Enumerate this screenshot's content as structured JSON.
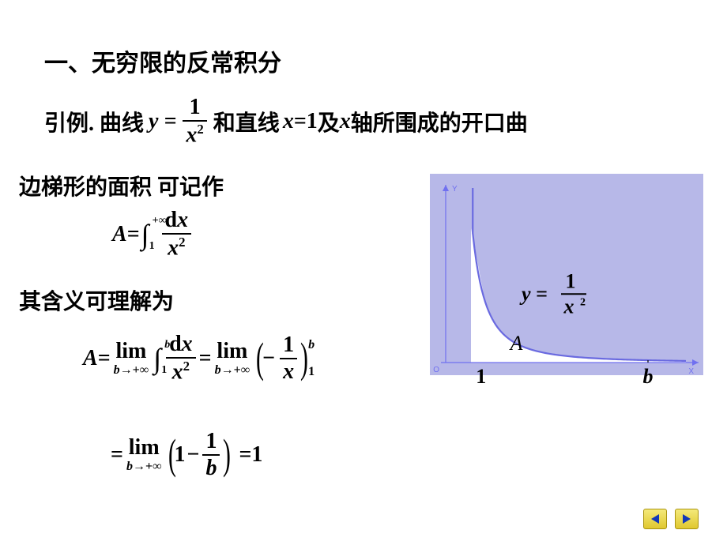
{
  "heading": "一、无穷限的反常积分",
  "lead_in": "引例. 曲线",
  "curve_lhs": "y =",
  "curve_frac_num": "1",
  "curve_frac_den": "x",
  "curve_frac_den_exp": "2",
  "and_line": "和直线",
  "line_eq_lhs": "x",
  "line_eq_eq": " = ",
  "line_eq_rhs": "1",
  "and_x_axis": " 及",
  "x_axis_var": "x",
  "x_axis_tail": " 轴所围成的开口曲",
  "line2": "边梯形的面积 可记作",
  "A_sym": "A",
  "eq": " = ",
  "int_sym": "∫",
  "int_lo": "1",
  "int_hi": "+∞",
  "dx_num_d": "d",
  "dx_num_x": "x",
  "dx_den": "x",
  "dx_den_exp": "2",
  "line3": "其含义可理解为",
  "lim": "lim",
  "lim_under_b": "b",
  "lim_under_arrow": "→",
  "lim_under_inf": "+∞",
  "int2_hi": "b",
  "int2_lo": "1",
  "minus": "−",
  "frac1_num": "1",
  "frac1_den": "x",
  "supb": "b",
  "sub1": "1",
  "one": "1",
  "minus2": " − ",
  "fracb_num": "1",
  "fracb_den": "b",
  "result": "1",
  "chart": {
    "bg": "#b7b8e8",
    "axis_color": "#7070f0",
    "curve_color": "#6a6ae0",
    "fill_color": "#ffffff",
    "region_color": "#ffffff",
    "label_y": "y =",
    "label_frac_num": "1",
    "label_frac_den": "x",
    "label_frac_den_exp": "2",
    "label_A": "A",
    "tick_1": "1",
    "tick_b": "b",
    "axis_label_x": "X",
    "axis_label_y": "Y",
    "axis_origin": "O",
    "xlim": [
      0,
      10
    ],
    "ylim": [
      0,
      1.2
    ],
    "curve_x0": 1.55,
    "curve_xmax": 9.5,
    "b_pos": 8.0,
    "label_fontsize": 26,
    "A_fontsize": 26
  },
  "nav": {
    "prev_color": "#1238b8",
    "next_color": "#1238b8"
  }
}
